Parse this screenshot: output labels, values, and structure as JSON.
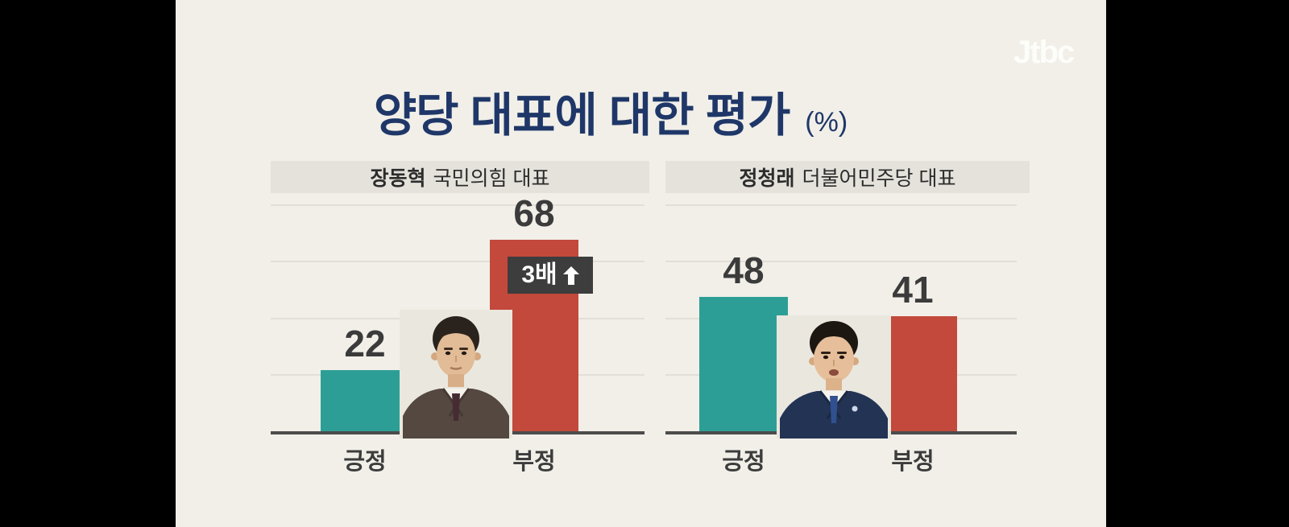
{
  "brand": {
    "logo_text": "Jtbc"
  },
  "title": {
    "main": "양당 대표에 대한 평가",
    "unit": "(%)"
  },
  "chart_data": {
    "type": "bar",
    "title": "양당 대표에 대한 평가",
    "unit": "%",
    "ylim": [
      0,
      100
    ],
    "gridline_values": [
      20,
      40,
      60,
      80
    ],
    "grid": true,
    "legend": false,
    "panels": [
      {
        "subtitle": "장동혁 국민의힘 대표",
        "subject_bold": "장동혁",
        "subject_rest": "국민의힘 대표",
        "categories": [
          "긍정",
          "부정"
        ],
        "values": [
          22,
          68
        ],
        "bar_colors": [
          "#2d9e96",
          "#c2493b"
        ],
        "annotation": {
          "text": "3배",
          "icon": "up-arrow",
          "target": "부정"
        }
      },
      {
        "subtitle": "정청래 더불어민주당 대표",
        "subject_bold": "정청래",
        "subject_rest": "더불어민주당 대표",
        "categories": [
          "긍정",
          "부정"
        ],
        "values": [
          48,
          41
        ],
        "bar_colors": [
          "#2d9e96",
          "#c2493b"
        ]
      }
    ]
  },
  "colors": {
    "canvas_bg": "#f1efe8",
    "letterbox": "#000000",
    "title_text": "#1f3768",
    "header_bg": "#e4e2db",
    "header_text": "#2c2c2c",
    "positive_bar": "#2d9e96",
    "negative_bar": "#c2493b",
    "value_text": "#3b3b3b",
    "badge_bg": "#3d3d3d",
    "badge_text": "#ffffff",
    "baseline": "#4c4c4c",
    "gridline": "#e1dfd7"
  }
}
